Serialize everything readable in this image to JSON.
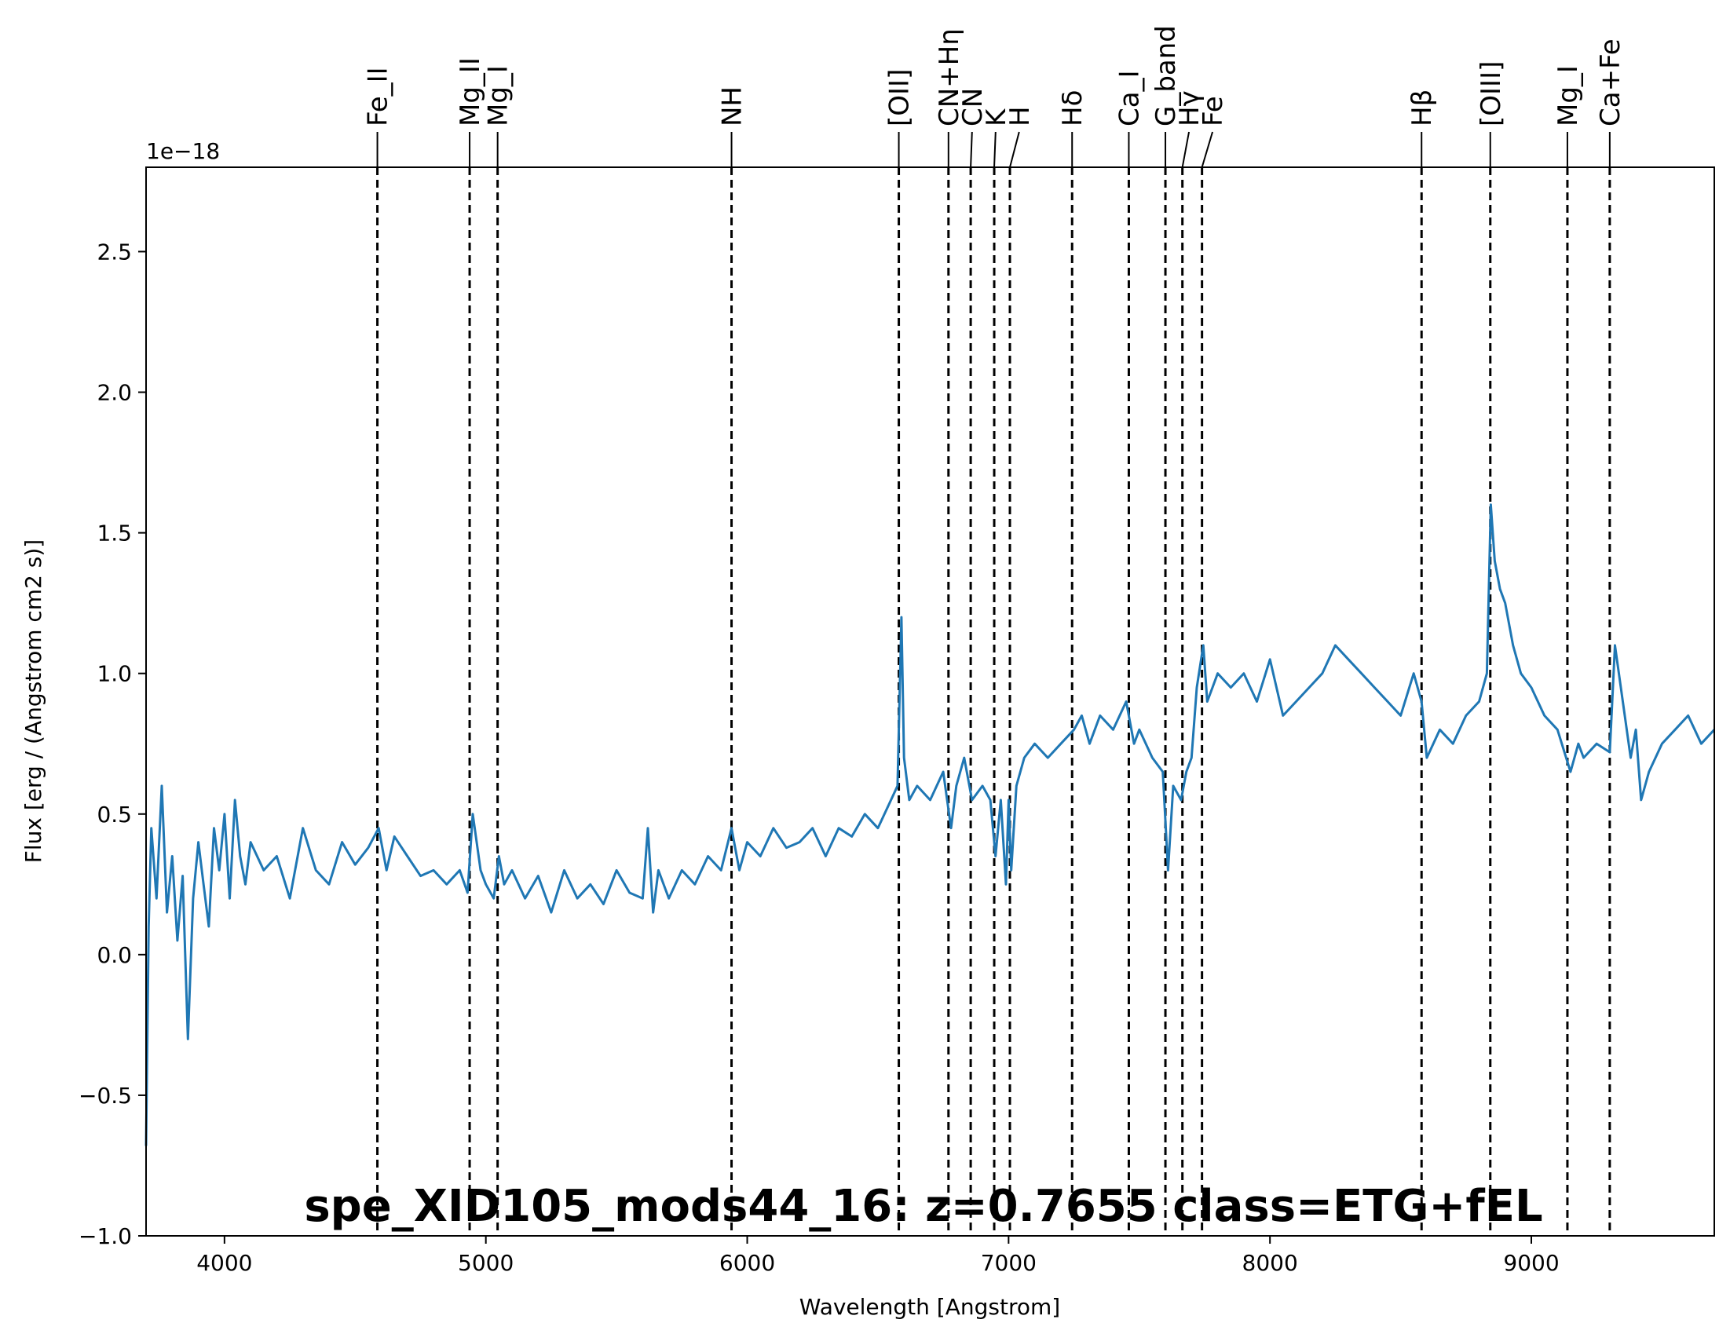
{
  "chart_data": {
    "type": "line",
    "title": "spe_XID105_mods44_16: z=0.7655 class=ETG+fEL",
    "title_color": "#ffa500",
    "xlabel": "Wavelength [Angstrom]",
    "ylabel": "Flux [erg / (Angstrom cm2 s)]",
    "y_offset_label": "1e−18",
    "xlim": [
      3700,
      9700
    ],
    "ylim": [
      -1.0,
      2.8
    ],
    "x_ticks": [
      4000,
      5000,
      6000,
      7000,
      8000,
      9000
    ],
    "x_tick_labels": [
      "4000",
      "5000",
      "6000",
      "7000",
      "8000",
      "9000"
    ],
    "y_ticks": [
      -1.0,
      -0.5,
      0.0,
      0.5,
      1.0,
      1.5,
      2.0,
      2.5
    ],
    "y_tick_labels": [
      "−1.0",
      "−0.5",
      "0.0",
      "0.5",
      "1.0",
      "1.5",
      "2.0",
      "2.5"
    ],
    "grid": false,
    "series_color": "#1f77b4",
    "series": [
      {
        "x": [
          3700,
          3710,
          3720,
          3740,
          3760,
          3780,
          3800,
          3820,
          3840,
          3860,
          3880,
          3900,
          3920,
          3940,
          3960,
          3980,
          4000,
          4020,
          4040,
          4060,
          4080,
          4100,
          4150,
          4200,
          4250,
          4300,
          4350,
          4400,
          4450,
          4500,
          4550,
          4590,
          4620,
          4650,
          4700,
          4750,
          4800,
          4850,
          4900,
          4930,
          4950,
          4980,
          5000,
          5030,
          5050,
          5070,
          5100,
          5150,
          5200,
          5250,
          5300,
          5350,
          5400,
          5450,
          5500,
          5550,
          5600,
          5620,
          5640,
          5660,
          5700,
          5750,
          5800,
          5850,
          5900,
          5940,
          5970,
          6000,
          6050,
          6100,
          6150,
          6200,
          6250,
          6300,
          6350,
          6400,
          6450,
          6500,
          6550,
          6575,
          6590,
          6600,
          6620,
          6650,
          6700,
          6750,
          6780,
          6800,
          6830,
          6860,
          6900,
          6930,
          6950,
          6970,
          6990,
          7000,
          7010,
          7030,
          7060,
          7100,
          7150,
          7200,
          7250,
          7280,
          7310,
          7350,
          7400,
          7450,
          7480,
          7500,
          7550,
          7590,
          7610,
          7630,
          7660,
          7680,
          7700,
          7720,
          7745,
          7760,
          7780,
          7800,
          7850,
          7900,
          7950,
          8000,
          8050,
          8100,
          8150,
          8200,
          8250,
          8300,
          8350,
          8400,
          8450,
          8500,
          8550,
          8580,
          8600,
          8650,
          8700,
          8750,
          8800,
          8830,
          8845,
          8860,
          8880,
          8900,
          8930,
          8960,
          9000,
          9050,
          9100,
          9150,
          9180,
          9200,
          9250,
          9300,
          9320,
          9350,
          9380,
          9400,
          9420,
          9450,
          9500,
          9550,
          9600,
          9650,
          9700
        ],
        "y": [
          -0.68,
          0.1,
          0.45,
          0.2,
          0.6,
          0.15,
          0.35,
          0.05,
          0.28,
          -0.3,
          0.2,
          0.4,
          0.25,
          0.1,
          0.45,
          0.3,
          0.5,
          0.2,
          0.55,
          0.35,
          0.25,
          0.4,
          0.3,
          0.35,
          0.2,
          0.45,
          0.3,
          0.25,
          0.4,
          0.32,
          0.38,
          0.45,
          0.3,
          0.42,
          0.35,
          0.28,
          0.3,
          0.25,
          0.3,
          0.22,
          0.5,
          0.3,
          0.25,
          0.2,
          0.35,
          0.25,
          0.3,
          0.2,
          0.28,
          0.15,
          0.3,
          0.2,
          0.25,
          0.18,
          0.3,
          0.22,
          0.2,
          0.45,
          0.15,
          0.3,
          0.2,
          0.3,
          0.25,
          0.35,
          0.3,
          0.45,
          0.3,
          0.4,
          0.35,
          0.45,
          0.38,
          0.4,
          0.45,
          0.35,
          0.45,
          0.42,
          0.5,
          0.45,
          0.55,
          0.6,
          1.2,
          0.7,
          0.55,
          0.6,
          0.55,
          0.65,
          0.45,
          0.6,
          0.7,
          0.55,
          0.6,
          0.55,
          0.35,
          0.55,
          0.25,
          0.55,
          0.3,
          0.6,
          0.7,
          0.75,
          0.7,
          0.75,
          0.8,
          0.85,
          0.75,
          0.85,
          0.8,
          0.9,
          0.75,
          0.8,
          0.7,
          0.65,
          0.3,
          0.6,
          0.55,
          0.65,
          0.7,
          0.95,
          1.1,
          0.9,
          0.95,
          1.0,
          0.95,
          1.0,
          0.9,
          1.05,
          0.85,
          0.9,
          0.95,
          1.0,
          1.1,
          1.05,
          1.0,
          0.95,
          0.9,
          0.85,
          1.0,
          0.9,
          0.7,
          0.8,
          0.75,
          0.85,
          0.9,
          1.0,
          1.6,
          1.4,
          1.3,
          1.25,
          1.1,
          1.0,
          0.95,
          0.85,
          0.8,
          0.65,
          0.75,
          0.7,
          0.75,
          0.72,
          1.1,
          0.9,
          0.7,
          0.8,
          0.55,
          0.65,
          0.75,
          0.8,
          0.85,
          0.75,
          0.8
        ]
      }
    ],
    "line_markers": [
      {
        "label": "Fe_II",
        "x": 4585
      },
      {
        "label": "Mg_II",
        "x": 4938
      },
      {
        "label": "Mg_I",
        "x": 5045
      },
      {
        "label": "NH",
        "x": 5940
      },
      {
        "label": "[OII]",
        "x": 6580
      },
      {
        "label": "CN+Hη",
        "x": 6770
      },
      {
        "label": "CN",
        "x": 6855
      },
      {
        "label": "K",
        "x": 6945
      },
      {
        "label": "H",
        "x": 7005
      },
      {
        "label": "Hδ",
        "x": 7243
      },
      {
        "label": "Ca_I",
        "x": 7460
      },
      {
        "label": "G_band",
        "x": 7600
      },
      {
        "label": "Hγ",
        "x": 7665
      },
      {
        "label": "Fe",
        "x": 7740
      },
      {
        "label": "Hβ",
        "x": 8580
      },
      {
        "label": "[OIII]",
        "x": 8843
      },
      {
        "label": "Mg_I",
        "x": 9138
      },
      {
        "label": "Ca+Fe",
        "x": 9300
      }
    ]
  }
}
